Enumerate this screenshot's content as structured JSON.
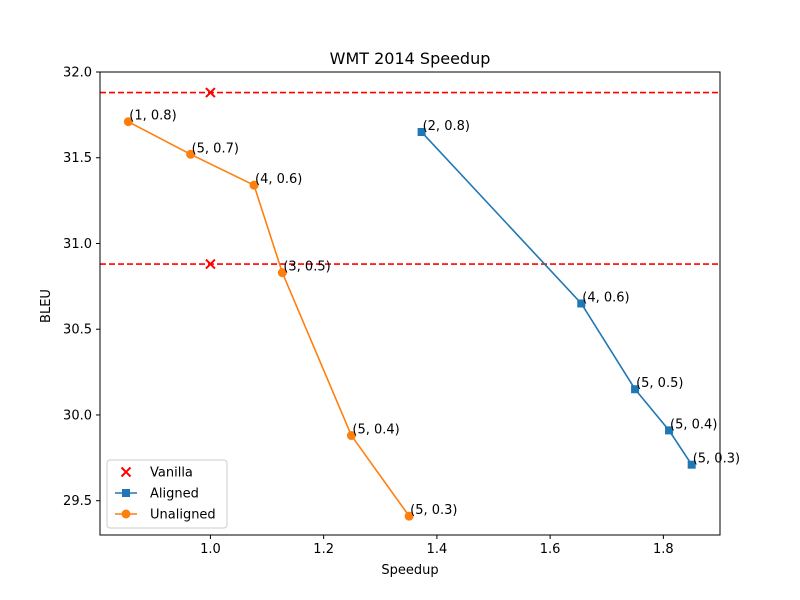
{
  "chart_data": {
    "type": "line",
    "title": "WMT 2014 Speedup",
    "xlabel": "Speedup",
    "ylabel": "BLEU",
    "xlim": [
      0.805,
      1.9
    ],
    "ylim": [
      29.3,
      32.0
    ],
    "xticks": [
      1.0,
      1.2,
      1.4,
      1.6,
      1.8
    ],
    "xtick_labels": [
      "1.0",
      "1.2",
      "1.4",
      "1.6",
      "1.8"
    ],
    "yticks": [
      29.5,
      30.0,
      30.5,
      31.0,
      31.5,
      32.0
    ],
    "ytick_labels": [
      "29.5",
      "30.0",
      "30.5",
      "31.0",
      "31.5",
      "32.0"
    ],
    "grid": false,
    "legend_position": "lower-left",
    "reference_lines": [
      {
        "y": 31.88,
        "color": "#ff0000",
        "style": "dashed"
      },
      {
        "y": 30.88,
        "color": "#ff0000",
        "style": "dashed"
      }
    ],
    "series": [
      {
        "name": "Vanilla",
        "kind": "scatter",
        "marker": "x",
        "color": "#ff0000",
        "points": [
          {
            "x": 1.0,
            "y": 31.88
          },
          {
            "x": 1.0,
            "y": 30.88
          }
        ]
      },
      {
        "name": "Aligned",
        "kind": "line",
        "marker": "square",
        "color": "#1f77b4",
        "points": [
          {
            "x": 1.373,
            "y": 31.65,
            "label": "(2, 0.8)"
          },
          {
            "x": 1.655,
            "y": 30.65,
            "label": "(4, 0.6)"
          },
          {
            "x": 1.75,
            "y": 30.15,
            "label": "(5, 0.5)"
          },
          {
            "x": 1.81,
            "y": 29.91,
            "label": "(5, 0.4)"
          },
          {
            "x": 1.85,
            "y": 29.71,
            "label": "(5, 0.3)"
          }
        ]
      },
      {
        "name": "Unaligned",
        "kind": "line",
        "marker": "circle",
        "color": "#ff7f0e",
        "points": [
          {
            "x": 0.855,
            "y": 31.71,
            "label": "(1, 0.8)"
          },
          {
            "x": 0.965,
            "y": 31.52,
            "label": "(5, 0.7)"
          },
          {
            "x": 1.077,
            "y": 31.34,
            "label": "(4, 0.6)"
          },
          {
            "x": 1.127,
            "y": 30.83,
            "label": "(3, 0.5)"
          },
          {
            "x": 1.249,
            "y": 29.88,
            "label": "(5, 0.4)"
          },
          {
            "x": 1.351,
            "y": 29.41,
            "label": "(5, 0.3)"
          }
        ]
      }
    ]
  }
}
